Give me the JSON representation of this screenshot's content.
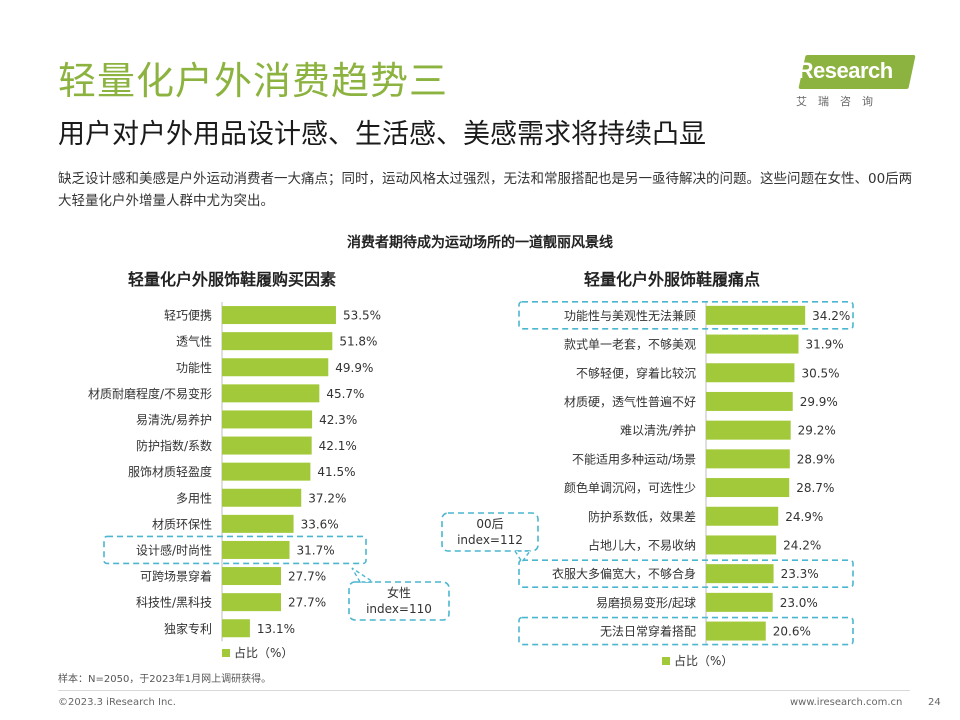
{
  "header": {
    "title": "轻量化户外消费趋势三",
    "subtitle": "用户对户外用品设计感、生活感、美感需求将持续凸显",
    "description": "缺乏设计感和美感是户外运动消费者一大痛点；同时，运动风格太过强烈，无法和常服搭配也是另一亟待解决的问题。这些问题在女性、00后两大轻量化户外增量人群中尤为突出。"
  },
  "logo": {
    "name": "iResearch",
    "sub": "艾瑞咨询"
  },
  "center_title": "消费者期待成为运动场所的一道靓丽风景线",
  "colors": {
    "accent": "#8cb33f",
    "bar": "#a2c93a",
    "highlight_box": "#4bb6cf"
  },
  "chart_data": [
    {
      "type": "bar",
      "orientation": "horizontal",
      "title": "轻量化户外服饰鞋履购买因素",
      "categories": [
        "轻巧便携",
        "透气性",
        "功能性",
        "材质耐磨程度/不易变形",
        "易清洗/易养护",
        "防护指数/系数",
        "服饰材质轻盈度",
        "多用性",
        "材质环保性",
        "设计感/时尚性",
        "可跨场景穿着",
        "科技性/黑科技",
        "独家专利"
      ],
      "values": [
        53.5,
        51.8,
        49.9,
        45.7,
        42.3,
        42.1,
        41.5,
        37.2,
        33.6,
        31.7,
        27.7,
        27.7,
        13.1
      ],
      "value_labels": [
        "53.5%",
        "51.8%",
        "49.9%",
        "45.7%",
        "42.3%",
        "42.1%",
        "41.5%",
        "37.2%",
        "33.6%",
        "31.7%",
        "27.7%",
        "27.7%",
        "13.1%"
      ],
      "legend": "占比（%）",
      "xlim": [
        0,
        100
      ],
      "highlighted": [
        "设计感/时尚性"
      ],
      "callout": {
        "line1": "女性",
        "line2": "index=110"
      }
    },
    {
      "type": "bar",
      "orientation": "horizontal",
      "title": "轻量化户外服饰鞋履痛点",
      "categories": [
        "功能性与美观性无法兼顾",
        "款式单一老套，不够美观",
        "不够轻便，穿着比较沉",
        "材质硬，透气性普遍不好",
        "难以清洗/养护",
        "不能适用多种运动/场景",
        "颜色单调沉闷，可选性少",
        "防护系数低，效果差",
        "占地儿大，不易收纳",
        "衣服大多偏宽大，不够合身",
        "易磨损易变形/起球",
        "无法日常穿着搭配"
      ],
      "values": [
        34.2,
        31.9,
        30.5,
        29.9,
        29.2,
        28.9,
        28.7,
        24.9,
        24.2,
        23.3,
        23.0,
        20.6
      ],
      "value_labels": [
        "34.2%",
        "31.9%",
        "30.5%",
        "29.9%",
        "29.2%",
        "28.9%",
        "28.7%",
        "24.9%",
        "24.2%",
        "23.3%",
        "23.0%",
        "20.6%"
      ],
      "legend": "占比（%）",
      "xlim": [
        0,
        75
      ],
      "highlighted": [
        "功能性与美观性无法兼顾",
        "衣服大多偏宽大，不够合身",
        "无法日常穿着搭配"
      ],
      "callout": {
        "line1": "00后",
        "line2": "index=112"
      }
    }
  ],
  "footer": {
    "note": "样本：N=2050，于2023年1月网上调研获得。",
    "copyright": "©2023.3 iResearch Inc.",
    "website": "www.iresearch.com.cn",
    "page": "24"
  }
}
